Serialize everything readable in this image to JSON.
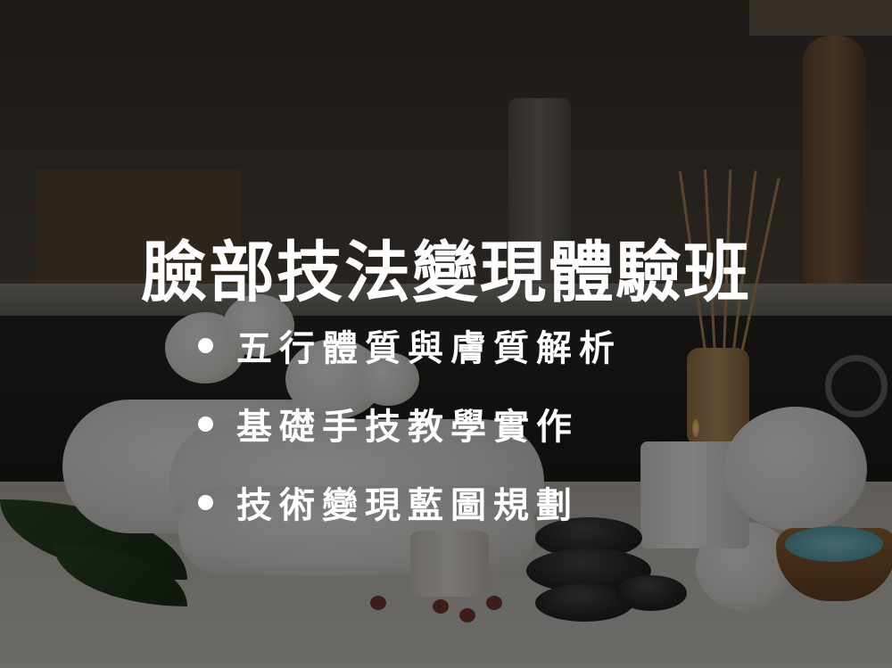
{
  "banner": {
    "title": "臉部技法變現體驗班",
    "features": [
      {
        "text": "五行體質與膚質解析"
      },
      {
        "text": "基礎手技教學實作"
      },
      {
        "text": "技術變現藍圖規劃"
      }
    ]
  },
  "colors": {
    "text": "#ffffff",
    "overlay": "rgba(0,0,0,0.5)"
  },
  "background_icons": [
    "towel-roll",
    "cotton-flower",
    "reed-diffuser",
    "candle",
    "hot-stone",
    "salt-bowl",
    "cream-jar"
  ]
}
